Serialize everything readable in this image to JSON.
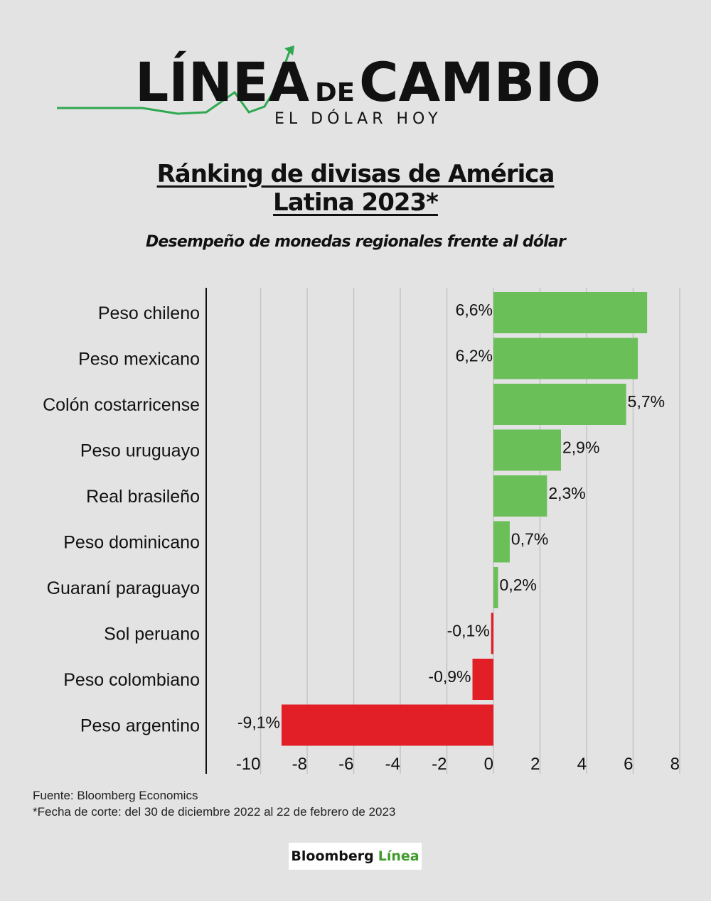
{
  "header": {
    "logo_word1": "LÍNEA",
    "logo_word2": "DE",
    "logo_word3": "CAMBIO",
    "logo_subtitle": "EL DÓLAR HOY",
    "accent_color": "#2fa84f"
  },
  "chart_data": {
    "type": "bar",
    "orientation": "horizontal",
    "title_line1": "Ránking de divisas de América",
    "title_line2": "Latina 2023*",
    "subtitle": "Desempeño de monedas regionales frente al dólar",
    "categories": [
      "Peso chileno",
      "Peso mexicano",
      "Colón costarricense",
      "Peso uruguayo",
      "Real brasileño",
      "Peso dominicano",
      "Guaraní paraguayo",
      "Sol peruano",
      "Peso colombiano",
      "Peso argentino"
    ],
    "values": [
      6.6,
      6.2,
      5.7,
      2.9,
      2.3,
      0.7,
      0.2,
      -0.1,
      -0.9,
      -9.1
    ],
    "value_labels": [
      "6,6%",
      "6,2%",
      "5,7%",
      "2,9%",
      "2,3%",
      "0,7%",
      "0,2%",
      "-0,1%",
      "-0,9%",
      "-9,1%"
    ],
    "xlim": [
      -10,
      8
    ],
    "xticks": [
      "-10",
      "-8",
      "-6",
      "-4",
      "-2",
      "0",
      "2",
      "4",
      "6",
      "8"
    ],
    "xtick_values": [
      -10,
      -8,
      -6,
      -4,
      -2,
      0,
      2,
      4,
      6,
      8
    ],
    "grid": true,
    "positive_color": "#6abf59",
    "negative_color": "#e21f26"
  },
  "footer": {
    "source": "Fuente: Bloomberg Economics",
    "note": "*Fecha de corte: del 30 de diciembre 2022 al 22 de febrero de 2023",
    "brand_part1": "Bloomberg",
    "brand_part2": "Línea"
  }
}
